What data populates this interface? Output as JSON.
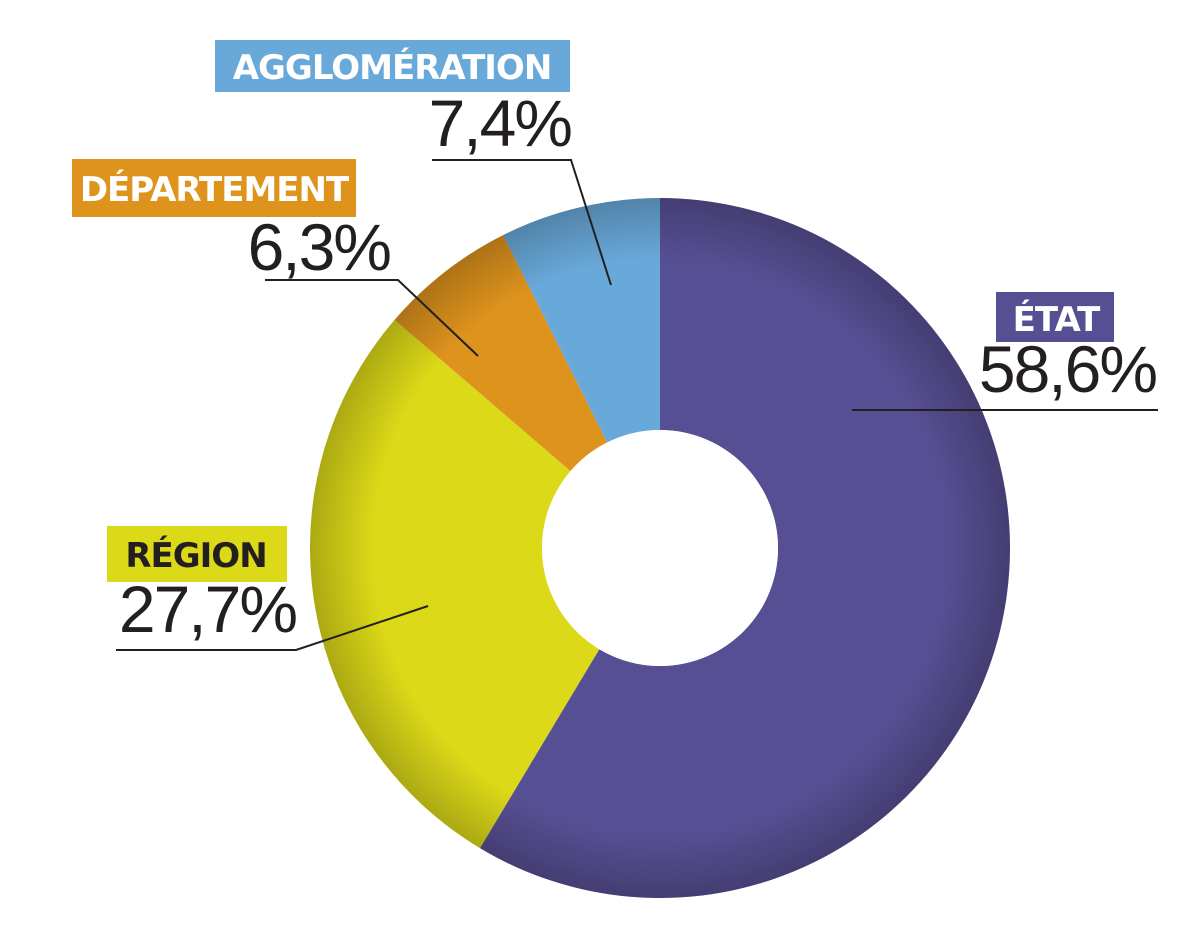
{
  "chart_data": {
    "type": "pie",
    "style": "donut",
    "slices": [
      {
        "label": "ÉTAT",
        "value": 58.6,
        "value_label": "58,6%",
        "color": "#574f93",
        "tag_text_color": "#ffffff"
      },
      {
        "label": "RÉGION",
        "value": 27.7,
        "value_label": "27,7%",
        "color": "#dcd918",
        "tag_text_color": "#231f20"
      },
      {
        "label": "DÉPARTEMENT",
        "value": 6.3,
        "value_label": "6,3%",
        "color": "#de931d",
        "tag_text_color": "#ffffff"
      },
      {
        "label": "AGGLOMÉRATION",
        "value": 7.4,
        "value_label": "7,4%",
        "color": "#69a9da",
        "tag_text_color": "#ffffff"
      }
    ]
  }
}
